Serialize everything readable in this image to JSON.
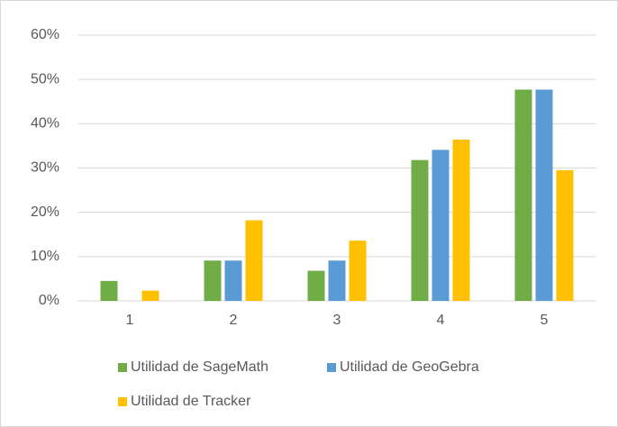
{
  "chart_data": {
    "type": "bar",
    "categories": [
      "1",
      "2",
      "3",
      "4",
      "5"
    ],
    "series": [
      {
        "name": "Utilidad de SageMath",
        "color": "#70ad47",
        "values": [
          4.5,
          9.1,
          6.8,
          31.8,
          47.7
        ]
      },
      {
        "name": "Utilidad de GeoGebra",
        "color": "#5b9bd5",
        "values": [
          0,
          9.1,
          9.1,
          34.1,
          47.7
        ]
      },
      {
        "name": "Utilidad de Tracker",
        "color": "#ffc000",
        "values": [
          2.3,
          18.2,
          13.6,
          36.4,
          29.5
        ]
      }
    ],
    "ylim": [
      0,
      60
    ],
    "yticks": [
      {
        "value": 0,
        "label": "0%"
      },
      {
        "value": 10,
        "label": "10%"
      },
      {
        "value": 20,
        "label": "20%"
      },
      {
        "value": 30,
        "label": "30%"
      },
      {
        "value": 40,
        "label": "40%"
      },
      {
        "value": 50,
        "label": "50%"
      },
      {
        "value": 60,
        "label": "60%"
      }
    ],
    "grid": true,
    "legend": "bottom"
  }
}
